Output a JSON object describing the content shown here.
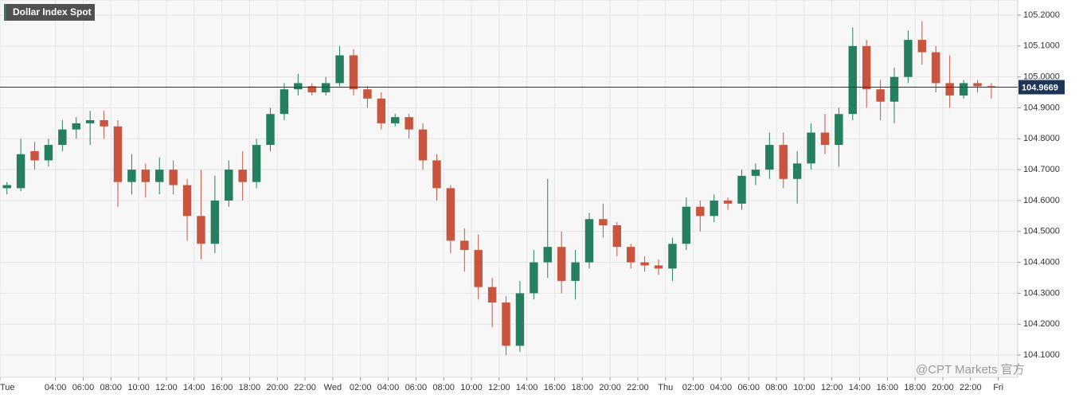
{
  "chart_data": {
    "type": "candlestick",
    "title": "Dollar Index Spot",
    "watermark": "@CPT Markets 官方",
    "x": [
      0.5,
      1.5,
      2.5,
      3.5,
      4.5,
      5.5,
      6.5,
      7.5,
      8.5,
      9.5,
      10.5,
      11.5,
      12.5,
      13.5,
      14.5,
      15.5,
      16.5,
      17.5,
      18.5,
      19.5,
      20.5,
      21.5,
      22.5,
      23.5,
      24.5,
      25.5,
      26.5,
      27.5,
      28.5,
      29.5,
      30.5,
      31.5,
      32.5,
      33.5,
      34.5,
      35.5,
      36.5,
      37.5,
      38.5,
      39.5,
      40.5,
      41.5,
      42.5,
      43.5,
      44.5,
      45.5,
      46.5,
      47.5,
      48.5,
      49.5,
      50.5,
      51.5,
      52.5,
      53.5,
      54.5,
      55.5,
      56.5,
      57.5,
      58.5,
      59.5,
      60.5,
      61.5,
      62.5,
      63.5,
      64.5,
      65.5,
      66.5,
      67.5,
      68.5,
      69.5,
      70.5,
      71.5
    ],
    "open": [
      104.64,
      104.64,
      104.76,
      104.73,
      104.78,
      104.83,
      104.85,
      104.86,
      104.84,
      104.66,
      104.7,
      104.66,
      104.7,
      104.65,
      104.55,
      104.46,
      104.6,
      104.7,
      104.66,
      104.78,
      104.88,
      104.96,
      104.97,
      104.95,
      104.98,
      105.07,
      104.96,
      104.93,
      104.85,
      104.87,
      104.83,
      104.73,
      104.64,
      104.47,
      104.44,
      104.32,
      104.27,
      104.13,
      104.3,
      104.4,
      104.45,
      104.34,
      104.4,
      104.54,
      104.52,
      104.45,
      104.4,
      104.39,
      104.38,
      104.46,
      104.58,
      104.55,
      104.6,
      104.59,
      104.68,
      104.7,
      104.78,
      104.67,
      104.72,
      104.82,
      104.78,
      104.88,
      105.1,
      104.96,
      104.92,
      105.0,
      105.12,
      105.08,
      104.98,
      104.94,
      104.98,
      104.97
    ],
    "high": [
      104.66,
      104.8,
      104.79,
      104.8,
      104.86,
      104.87,
      104.89,
      104.89,
      104.86,
      104.75,
      104.72,
      104.74,
      104.73,
      104.67,
      104.7,
      104.68,
      104.73,
      104.76,
      104.8,
      104.9,
      104.98,
      105.01,
      104.98,
      105.0,
      105.1,
      105.09,
      104.97,
      104.95,
      104.88,
      104.88,
      104.85,
      104.75,
      104.65,
      104.51,
      104.49,
      104.35,
      104.29,
      104.34,
      104.44,
      104.67,
      104.5,
      104.44,
      104.56,
      104.59,
      104.53,
      104.46,
      104.42,
      104.41,
      104.48,
      104.61,
      104.6,
      104.62,
      104.61,
      104.7,
      104.72,
      104.82,
      104.82,
      104.76,
      104.85,
      104.88,
      104.9,
      105.16,
      105.12,
      104.99,
      105.03,
      105.15,
      105.18,
      105.1,
      105.07,
      104.99,
      104.99,
      104.98
    ],
    "low": [
      104.62,
      104.63,
      104.7,
      104.71,
      104.76,
      104.8,
      104.78,
      104.8,
      104.58,
      104.62,
      104.61,
      104.62,
      104.62,
      104.47,
      104.41,
      104.43,
      104.58,
      104.6,
      104.64,
      104.76,
      104.86,
      104.94,
      104.94,
      104.94,
      104.97,
      104.94,
      104.9,
      104.83,
      104.84,
      104.8,
      104.7,
      104.6,
      104.43,
      104.37,
      104.28,
      104.19,
      104.1,
      104.11,
      104.28,
      104.35,
      104.3,
      104.28,
      104.38,
      104.48,
      104.42,
      104.38,
      104.37,
      104.36,
      104.34,
      104.44,
      104.5,
      104.53,
      104.57,
      104.57,
      104.65,
      104.67,
      104.64,
      104.59,
      104.7,
      104.75,
      104.71,
      104.86,
      104.9,
      104.86,
      104.85,
      104.98,
      105.04,
      104.95,
      104.9,
      104.93,
      104.95,
      104.93
    ],
    "close": [
      104.65,
      104.75,
      104.73,
      104.78,
      104.83,
      104.85,
      104.86,
      104.84,
      104.66,
      104.7,
      104.66,
      104.7,
      104.65,
      104.55,
      104.46,
      104.6,
      104.7,
      104.66,
      104.78,
      104.88,
      104.96,
      104.98,
      104.95,
      104.98,
      105.07,
      104.96,
      104.93,
      104.85,
      104.87,
      104.83,
      104.73,
      104.64,
      104.47,
      104.44,
      104.32,
      104.27,
      104.13,
      104.3,
      104.4,
      104.45,
      104.34,
      104.4,
      104.54,
      104.52,
      104.45,
      104.4,
      104.39,
      104.38,
      104.46,
      104.58,
      104.55,
      104.6,
      104.59,
      104.68,
      104.7,
      104.78,
      104.67,
      104.72,
      104.82,
      104.78,
      104.88,
      105.1,
      104.96,
      104.92,
      105.0,
      105.12,
      105.08,
      104.98,
      104.94,
      104.98,
      104.97,
      104.9669
    ],
    "last_price": 104.9669,
    "up_color": "#26805f",
    "down_color": "#c8553f",
    "last_color": "#1d3557",
    "xlim": [
      0,
      73.4
    ],
    "xticks": [
      {
        "value": 0,
        "label": "Tue"
      },
      {
        "value": 4,
        "label": "04:00"
      },
      {
        "value": 6,
        "label": "06:00"
      },
      {
        "value": 8,
        "label": "08:00"
      },
      {
        "value": 10,
        "label": "10:00"
      },
      {
        "value": 12,
        "label": "12:00"
      },
      {
        "value": 14,
        "label": "14:00"
      },
      {
        "value": 16,
        "label": "16:00"
      },
      {
        "value": 18,
        "label": "18:00"
      },
      {
        "value": 20,
        "label": "20:00"
      },
      {
        "value": 22,
        "label": "22:00"
      },
      {
        "value": 24,
        "label": "Wed"
      },
      {
        "value": 26,
        "label": "02:00"
      },
      {
        "value": 28,
        "label": "04:00"
      },
      {
        "value": 30,
        "label": "06:00"
      },
      {
        "value": 32,
        "label": "08:00"
      },
      {
        "value": 34,
        "label": "10:00"
      },
      {
        "value": 36,
        "label": "12:00"
      },
      {
        "value": 38,
        "label": "14:00"
      },
      {
        "value": 40,
        "label": "16:00"
      },
      {
        "value": 42,
        "label": "18:00"
      },
      {
        "value": 44,
        "label": "20:00"
      },
      {
        "value": 46,
        "label": "22:00"
      },
      {
        "value": 48,
        "label": "Thu"
      },
      {
        "value": 50,
        "label": "02:00"
      },
      {
        "value": 52,
        "label": "04:00"
      },
      {
        "value": 54,
        "label": "06:00"
      },
      {
        "value": 56,
        "label": "08:00"
      },
      {
        "value": 58,
        "label": "10:00"
      },
      {
        "value": 60,
        "label": "12:00"
      },
      {
        "value": 62,
        "label": "14:00"
      },
      {
        "value": 64,
        "label": "16:00"
      },
      {
        "value": 66,
        "label": "18:00"
      },
      {
        "value": 68,
        "label": "20:00"
      },
      {
        "value": 70,
        "label": "22:00"
      },
      {
        "value": 72,
        "label": "Fri"
      }
    ],
    "ylim": [
      104.028,
      105.249
    ],
    "yticks": [
      {
        "value": 104.1,
        "label": "104.1000"
      },
      {
        "value": 104.2,
        "label": "104.2000"
      },
      {
        "value": 104.3,
        "label": "104.3000"
      },
      {
        "value": 104.4,
        "label": "104.4000"
      },
      {
        "value": 104.5,
        "label": "104.5000"
      },
      {
        "value": 104.6,
        "label": "104.6000"
      },
      {
        "value": 104.7,
        "label": "104.7000"
      },
      {
        "value": 104.8,
        "label": "104.8000"
      },
      {
        "value": 104.9,
        "label": "104.9000"
      },
      {
        "value": 105,
        "label": "105.0000"
      },
      {
        "value": 105.1,
        "label": "105.1000"
      },
      {
        "value": 105.2,
        "label": "105.2000"
      }
    ],
    "grid": true
  }
}
